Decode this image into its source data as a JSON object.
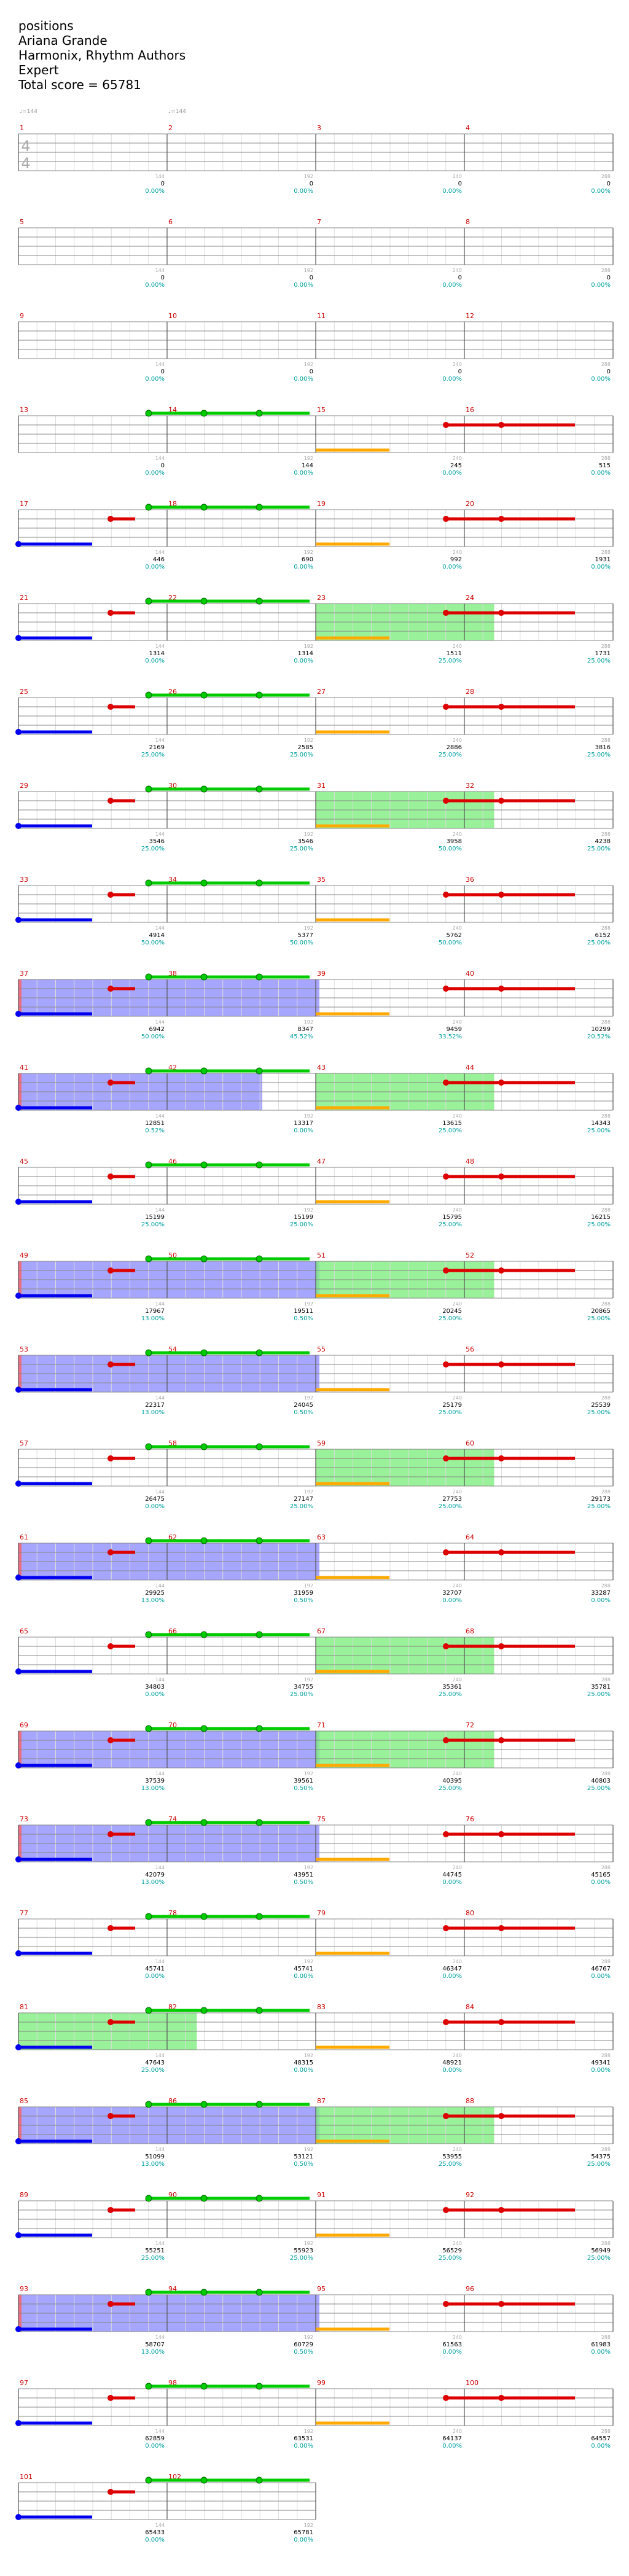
{
  "header": {
    "line1": "positions",
    "line2": "Ariana Grande",
    "line3": "Harmonix, Rhythm Authors",
    "line4": "Expert",
    "line5": "Total score = 65781"
  },
  "chart_data": {
    "type": "score-path",
    "title": "positions",
    "time_signature": "4/4",
    "tempo_marks": [
      "♩=144",
      "♩=144"
    ],
    "measures_per_row": 4,
    "measure_count": 102,
    "colors": {
      "measure_number": "#cc0000",
      "score_text": "#000000",
      "percent_text": "#00a0a0",
      "beat_label": "#aaaaaa",
      "staff": "#888888",
      "grid": "#dddddd",
      "note_green": "#00cc00",
      "note_red": "#dd0000",
      "note_yellow": "#ffaa00",
      "note_blue": "#0000ee",
      "overdrive_blue": "#8080ff",
      "overdrive_green": "#80ee80"
    },
    "row_labels": [
      {
        "scores": [
          "0",
          "0",
          "0",
          "0"
        ],
        "pcts": [
          "0.00%",
          "0.00%",
          "0.00%",
          "0.00%"
        ]
      },
      {
        "scores": [
          "0",
          "0",
          "0",
          "0"
        ],
        "pcts": [
          "0.00%",
          "0.00%",
          "0.00%",
          "0.00%"
        ]
      },
      {
        "scores": [
          "0",
          "0",
          "0",
          "0"
        ],
        "pcts": [
          "0.00%",
          "0.00%",
          "0.00%",
          "0.00%"
        ]
      },
      {
        "scores": [
          "0",
          "144",
          "245",
          "515"
        ],
        "pcts": [
          "0.00%",
          "0.00%",
          "0.00%",
          "0.00%"
        ]
      },
      {
        "scores": [
          "446",
          "690",
          "992",
          "1931"
        ],
        "pcts": [
          "0.00%",
          "0.00%",
          "0.00%",
          "0.00%"
        ]
      },
      {
        "scores": [
          "1314",
          "1314",
          "1511",
          "1731"
        ],
        "pcts": [
          "0.00%",
          "0.00%",
          "25.00%",
          "25.00%"
        ]
      },
      {
        "scores": [
          "2169",
          "2585",
          "2886",
          "3816"
        ],
        "pcts": [
          "25.00%",
          "25.00%",
          "25.00%",
          "25.00%"
        ]
      },
      {
        "scores": [
          "3546",
          "3546",
          "3958",
          "4238"
        ],
        "pcts": [
          "25.00%",
          "25.00%",
          "50.00%",
          "25.00%"
        ]
      },
      {
        "scores": [
          "4914",
          "5377",
          "5762",
          "6152"
        ],
        "pcts": [
          "50.00%",
          "50.00%",
          "50.00%",
          "25.00%"
        ]
      },
      {
        "scores": [
          "6942",
          "8347",
          "9459",
          "10299"
        ],
        "pcts": [
          "50.00%",
          "45.52%",
          "33.52%",
          "20.52%"
        ]
      },
      {
        "scores": [
          "12851",
          "13317",
          "13615",
          "14343"
        ],
        "pcts": [
          "0.52%",
          "0.00%",
          "25.00%",
          "25.00%"
        ]
      },
      {
        "scores": [
          "15199",
          "15199",
          "15795",
          "16215"
        ],
        "pcts": [
          "25.00%",
          "25.00%",
          "25.00%",
          "25.00%"
        ]
      },
      {
        "scores": [
          "17967",
          "19511",
          "20245",
          "20865"
        ],
        "pcts": [
          "13.00%",
          "0.50%",
          "25.00%",
          "25.00%"
        ]
      },
      {
        "scores": [
          "22317",
          "24045",
          "25179",
          "25539"
        ],
        "pcts": [
          "13.00%",
          "0.50%",
          "25.00%",
          "25.00%"
        ]
      },
      {
        "scores": [
          "26475",
          "27147",
          "27753",
          "29173"
        ],
        "pcts": [
          "0.00%",
          "25.00%",
          "25.00%",
          "25.00%"
        ]
      },
      {
        "scores": [
          "29925",
          "31959",
          "32707",
          "33287"
        ],
        "pcts": [
          "13.00%",
          "0.50%",
          "0.00%",
          "0.00%"
        ]
      },
      {
        "scores": [
          "34803",
          "34755",
          "35361",
          "35781"
        ],
        "pcts": [
          "0.00%",
          "25.00%",
          "25.00%",
          "25.00%"
        ]
      },
      {
        "scores": [
          "37539",
          "39561",
          "40395",
          "40803"
        ],
        "pcts": [
          "13.00%",
          "0.50%",
          "25.00%",
          "25.00%"
        ]
      },
      {
        "scores": [
          "42079",
          "43951",
          "44745",
          "45165"
        ],
        "pcts": [
          "13.00%",
          "0.50%",
          "0.00%",
          "0.00%"
        ]
      },
      {
        "scores": [
          "45741",
          "45741",
          "46347",
          "46767"
        ],
        "pcts": [
          "0.00%",
          "0.00%",
          "0.00%",
          "0.00%"
        ]
      },
      {
        "scores": [
          "47643",
          "48315",
          "48921",
          "49341"
        ],
        "pcts": [
          "25.00%",
          "0.00%",
          "0.00%",
          "0.00%"
        ]
      },
      {
        "scores": [
          "51099",
          "53121",
          "53955",
          "54375"
        ],
        "pcts": [
          "13.00%",
          "0.50%",
          "25.00%",
          "25.00%"
        ]
      },
      {
        "scores": [
          "55251",
          "55923",
          "56529",
          "56949"
        ],
        "pcts": [
          "25.00%",
          "25.00%",
          "25.00%",
          "25.00%"
        ]
      },
      {
        "scores": [
          "58707",
          "60729",
          "61563",
          "61983"
        ],
        "pcts": [
          "13.00%",
          "0.50%",
          "0.00%",
          "0.00%"
        ]
      },
      {
        "scores": [
          "62859",
          "63531",
          "64137",
          "64557"
        ],
        "pcts": [
          "0.00%",
          "0.00%",
          "0.00%",
          "0.00%"
        ]
      },
      {
        "scores": [
          "65433",
          "65781"
        ],
        "pcts": [
          "0.00%",
          "0.00%"
        ]
      }
    ],
    "od_blue_rows": [
      9,
      10,
      12,
      13,
      15,
      17,
      18,
      21,
      23
    ],
    "od_green_rows": [
      5,
      7,
      10,
      12,
      14,
      16,
      17,
      20,
      21
    ],
    "note_rows_start": 3
  }
}
